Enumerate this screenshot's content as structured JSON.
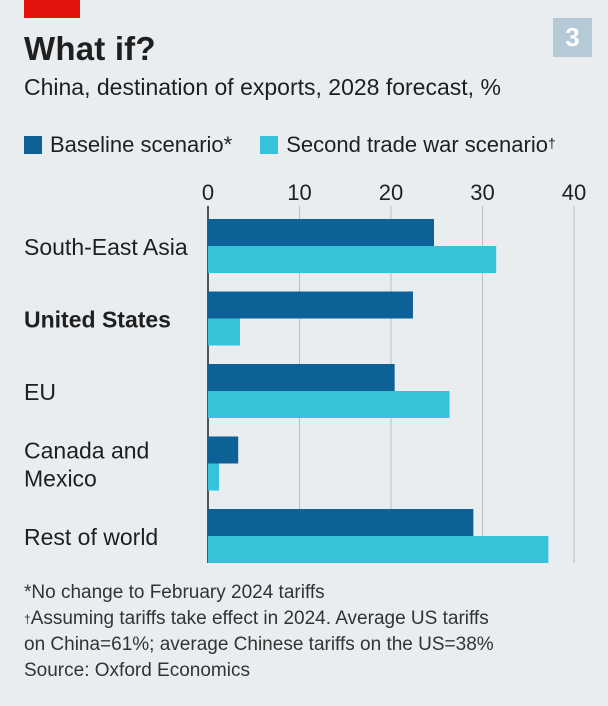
{
  "header": {
    "title": "What if?",
    "subtitle": "China, destination of exports, 2028 forecast, %",
    "badge": "3"
  },
  "colors": {
    "baseline": "#0e6196",
    "trade_war": "#36c3d9",
    "accent_red": "#e3120b",
    "background": "#e9edf0",
    "grid": "#b8c0c6"
  },
  "legend": {
    "baseline_label": "Baseline scenario*",
    "trade_war_label": "Second trade war scenario",
    "trade_war_mark": "†"
  },
  "chart_data": {
    "type": "bar",
    "orientation": "horizontal",
    "categories": [
      "South-East Asia",
      "United States",
      "EU",
      "Canada and Mexico",
      "Rest of world"
    ],
    "bold_categories": [
      "United States"
    ],
    "series": [
      {
        "name": "Baseline scenario*",
        "values": [
          24.7,
          22.4,
          20.4,
          3.3,
          29
        ]
      },
      {
        "name": "Second trade war scenario†",
        "values": [
          31.5,
          3.5,
          26.4,
          1.2,
          37.2
        ]
      }
    ],
    "xlim": [
      0,
      40
    ],
    "ticks": [
      0,
      10,
      20,
      30,
      40
    ],
    "tick_position": "top",
    "grid": true
  },
  "footnotes": {
    "note1": "*No change to February 2024 tariffs",
    "note2_mark": "†",
    "note2_line1": "Assuming tariffs take effect in 2024. Average US tariffs",
    "note2_line2": "on China=61%; average Chinese tariffs on the US=38%",
    "source": "Source: Oxford Economics"
  }
}
